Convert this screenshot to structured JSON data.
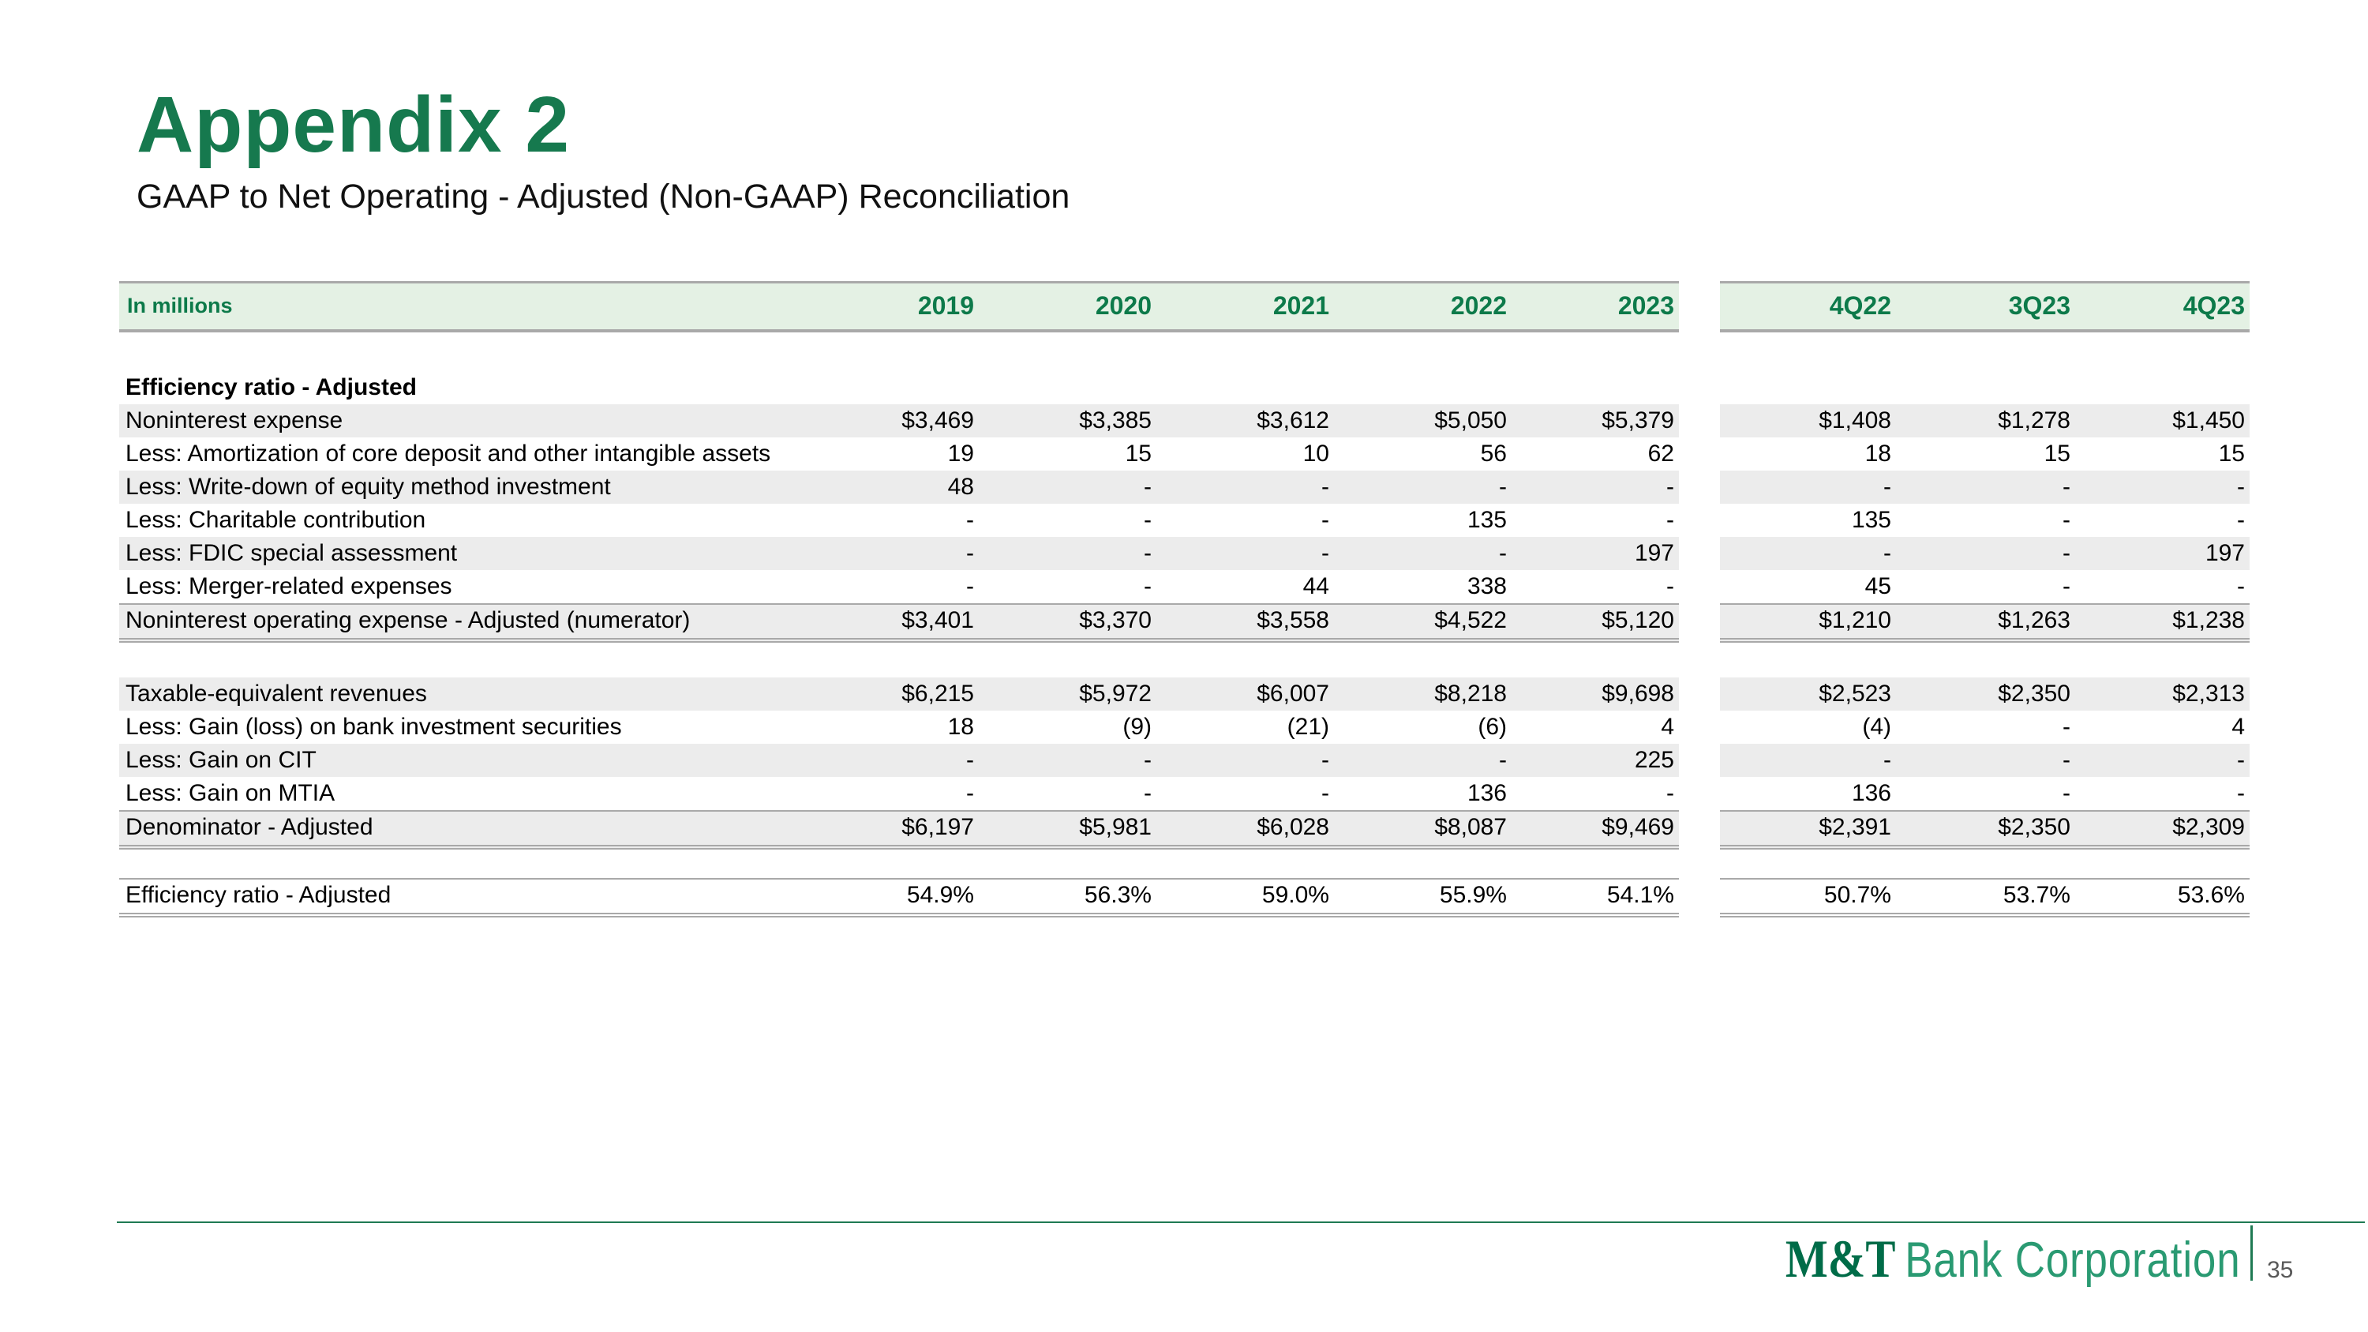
{
  "slide": {
    "title": "Appendix 2",
    "subtitle": "GAAP to Net Operating - Adjusted (Non-GAAP) Reconciliation",
    "page_number": "35"
  },
  "logo": {
    "symbol": "M&T",
    "name": "Bank Corporation"
  },
  "colors": {
    "title_green": "#16794E",
    "header_band_green": "#E4F1E4",
    "header_text_green": "#0D7A4A",
    "row_shade_gray": "#ECECEC",
    "rule_gray": "#A9A9A9",
    "footer_line_green": "#1F7A53",
    "logo_symbol_green": "#006C48",
    "logo_name_green": "#2A9A72",
    "page_number_gray": "#595959"
  },
  "table": {
    "unit_label": "In millions",
    "year_columns": [
      "2019",
      "2020",
      "2021",
      "2022",
      "2023"
    ],
    "quarter_columns": [
      "4Q22",
      "3Q23",
      "4Q23"
    ],
    "sections": [
      {
        "header": "Efficiency ratio - Adjusted",
        "rows": [
          {
            "label": "Noninterest expense",
            "years": [
              "$3,469",
              "$3,385",
              "$3,612",
              "$5,050",
              "$5,379"
            ],
            "quarters": [
              "$1,408",
              "$1,278",
              "$1,450"
            ],
            "shade": true,
            "total": false
          },
          {
            "label": "Less: Amortization of core deposit and other intangible assets",
            "years": [
              "19",
              "15",
              "10",
              "56",
              "62"
            ],
            "quarters": [
              "18",
              "15",
              "15"
            ],
            "shade": false,
            "total": false
          },
          {
            "label": "Less: Write-down of equity method investment",
            "years": [
              "48",
              "-",
              "-",
              "-",
              "-"
            ],
            "quarters": [
              "-",
              "-",
              "-"
            ],
            "shade": true,
            "total": false
          },
          {
            "label": "Less: Charitable contribution",
            "years": [
              "-",
              "-",
              "-",
              "135",
              "-"
            ],
            "quarters": [
              "135",
              "-",
              "-"
            ],
            "shade": false,
            "total": false
          },
          {
            "label": "Less: FDIC special assessment",
            "years": [
              "-",
              "-",
              "-",
              "-",
              "197"
            ],
            "quarters": [
              "-",
              "-",
              "197"
            ],
            "shade": true,
            "total": false
          },
          {
            "label": "Less: Merger-related expenses",
            "years": [
              "-",
              "-",
              "44",
              "338",
              "-"
            ],
            "quarters": [
              "45",
              "-",
              "-"
            ],
            "shade": false,
            "total": false
          },
          {
            "label": "Noninterest operating expense - Adjusted (numerator)",
            "years": [
              "$3,401",
              "$3,370",
              "$3,558",
              "$4,522",
              "$5,120"
            ],
            "quarters": [
              "$1,210",
              "$1,263",
              "$1,238"
            ],
            "shade": true,
            "total": true
          }
        ]
      },
      {
        "header": null,
        "rows": [
          {
            "label": "Taxable-equivalent revenues",
            "years": [
              "$6,215",
              "$5,972",
              "$6,007",
              "$8,218",
              "$9,698"
            ],
            "quarters": [
              "$2,523",
              "$2,350",
              "$2,313"
            ],
            "shade": true,
            "total": false
          },
          {
            "label": "Less: Gain (loss) on bank investment securities",
            "years": [
              "18",
              "(9)",
              "(21)",
              "(6)",
              "4"
            ],
            "quarters": [
              "(4)",
              "-",
              "4"
            ],
            "shade": false,
            "total": false
          },
          {
            "label": "Less: Gain on CIT",
            "years": [
              "-",
              "-",
              "-",
              "-",
              "225"
            ],
            "quarters": [
              "-",
              "-",
              "-"
            ],
            "shade": true,
            "total": false
          },
          {
            "label": "Less: Gain on MTIA",
            "years": [
              "-",
              "-",
              "-",
              "136",
              "-"
            ],
            "quarters": [
              "136",
              "-",
              "-"
            ],
            "shade": false,
            "total": false
          },
          {
            "label": "Denominator - Adjusted",
            "years": [
              "$6,197",
              "$5,981",
              "$6,028",
              "$8,087",
              "$9,469"
            ],
            "quarters": [
              "$2,391",
              "$2,350",
              "$2,309"
            ],
            "shade": true,
            "total": true
          }
        ]
      },
      {
        "header": null,
        "rows": [
          {
            "label": "Efficiency ratio - Adjusted",
            "years": [
              "54.9%",
              "56.3%",
              "59.0%",
              "55.9%",
              "54.1%"
            ],
            "quarters": [
              "50.7%",
              "53.7%",
              "53.6%"
            ],
            "shade": false,
            "total": true
          }
        ]
      }
    ]
  }
}
